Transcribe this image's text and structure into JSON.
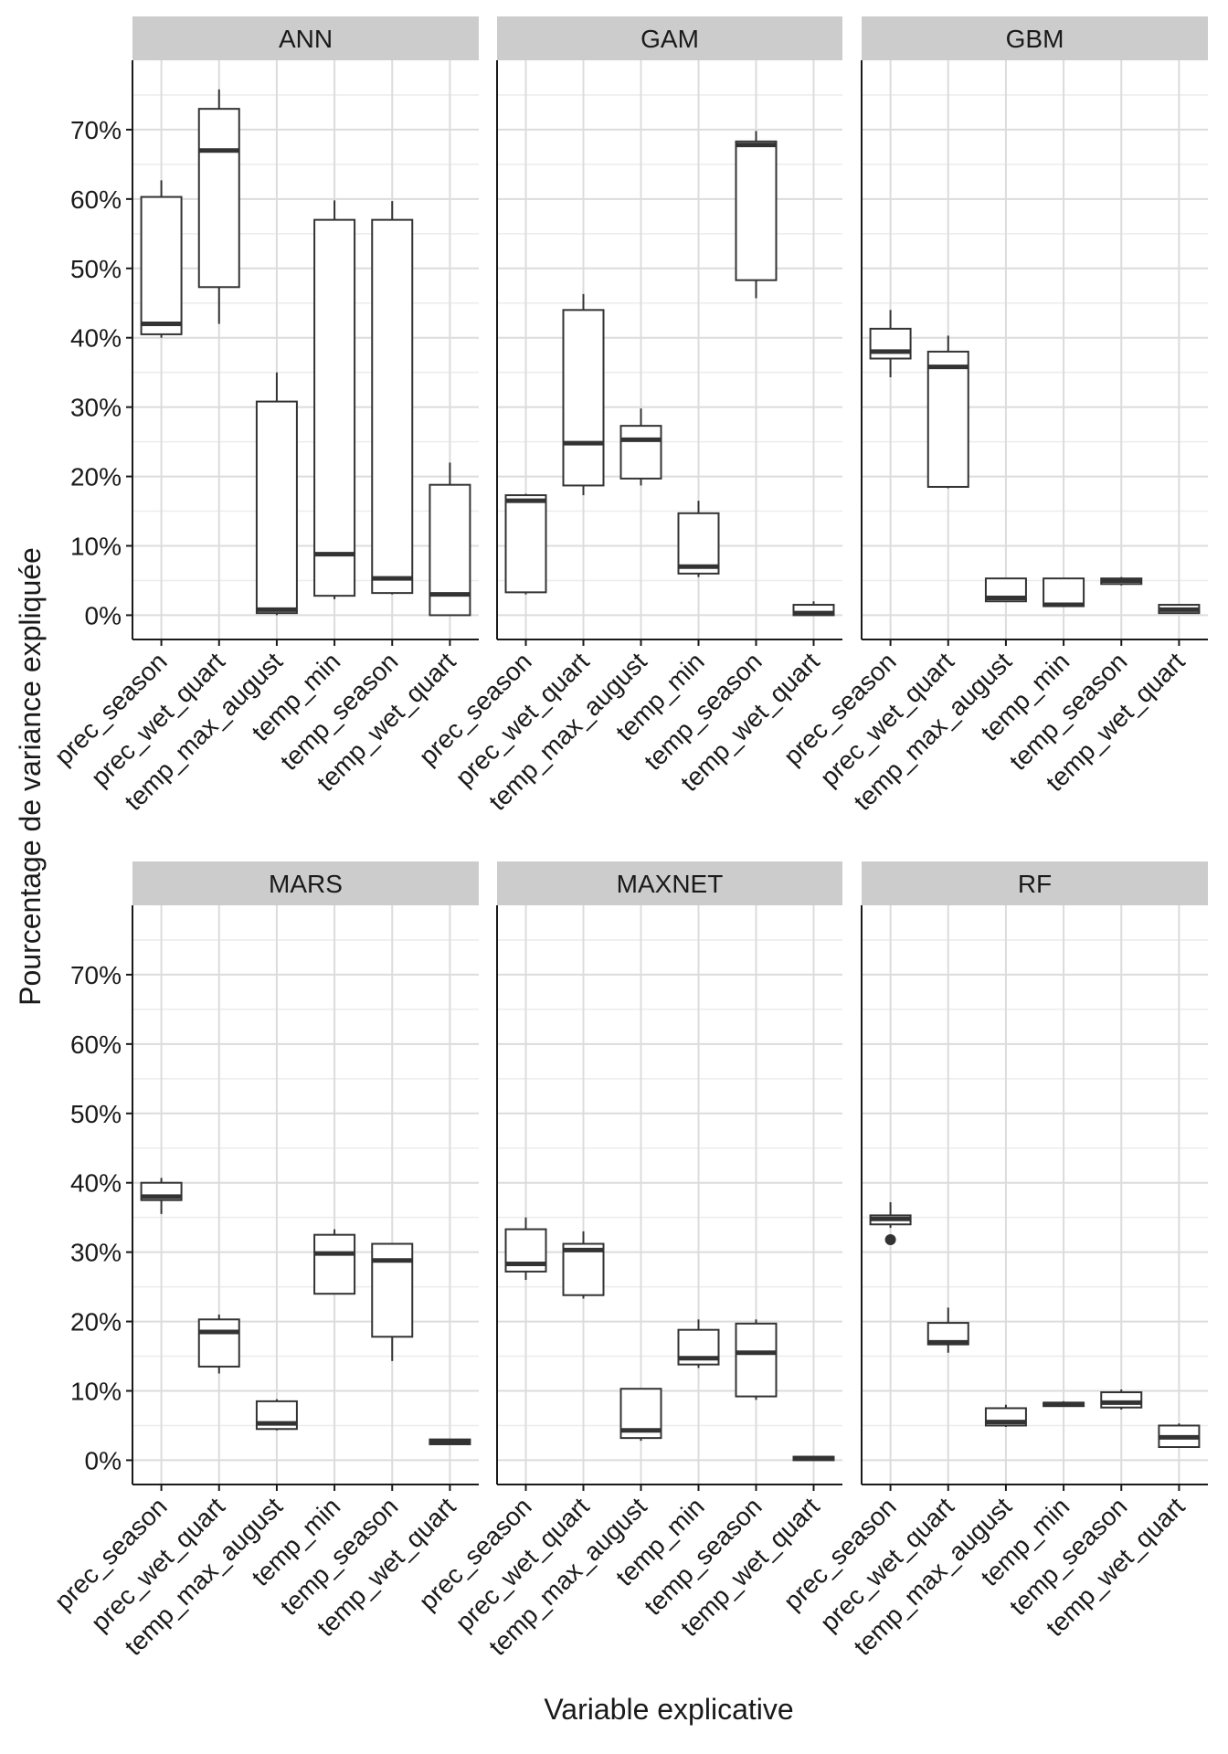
{
  "chart_data": {
    "type": "boxplot",
    "xlabel": "Variable explicative",
    "ylabel": "Pourcentage de variance expliquée",
    "ylim": [
      -3.5,
      80
    ],
    "yticks": [
      0,
      10,
      20,
      30,
      40,
      50,
      60,
      70
    ],
    "ytick_labels": [
      "0%",
      "10%",
      "20%",
      "30%",
      "40%",
      "50%",
      "60%",
      "70%"
    ],
    "categories": [
      "prec_season",
      "prec_wet_quart",
      "temp_max_august",
      "temp_min",
      "temp_season",
      "temp_wet_quart"
    ],
    "facets": [
      {
        "name": "ANN",
        "boxes": [
          {
            "min": 40,
            "q1": 40.5,
            "median": 42,
            "q3": 60.3,
            "max": 62.7
          },
          {
            "min": 42,
            "q1": 47.3,
            "median": 67,
            "q3": 73,
            "max": 75.8
          },
          {
            "min": 0,
            "q1": 0.3,
            "median": 0.8,
            "q3": 30.8,
            "max": 35
          },
          {
            "min": 2.3,
            "q1": 2.8,
            "median": 8.8,
            "q3": 57,
            "max": 59.8
          },
          {
            "min": 3,
            "q1": 3.2,
            "median": 5.3,
            "q3": 57,
            "max": 59.7
          },
          {
            "min": 0,
            "q1": 0,
            "median": 3,
            "q3": 18.8,
            "max": 22
          }
        ]
      },
      {
        "name": "GAM",
        "boxes": [
          {
            "min": 3,
            "q1": 3.3,
            "median": 16.5,
            "q3": 17.3,
            "max": 17.5
          },
          {
            "min": 17.3,
            "q1": 18.7,
            "median": 24.8,
            "q3": 44,
            "max": 46.3
          },
          {
            "min": 18.7,
            "q1": 19.7,
            "median": 25.3,
            "q3": 27.3,
            "max": 29.8
          },
          {
            "min": 5.5,
            "q1": 6,
            "median": 7,
            "q3": 14.7,
            "max": 16.5
          },
          {
            "min": 45.7,
            "q1": 48.3,
            "median": 67.8,
            "q3": 68.3,
            "max": 69.8
          },
          {
            "min": 0,
            "q1": 0,
            "median": 0.3,
            "q3": 1.5,
            "max": 2
          }
        ]
      },
      {
        "name": "GBM",
        "boxes": [
          {
            "min": 34.3,
            "q1": 37,
            "median": 38,
            "q3": 41.3,
            "max": 44
          },
          {
            "min": 18.3,
            "q1": 18.5,
            "median": 35.8,
            "q3": 38,
            "max": 40.3
          },
          {
            "min": 2,
            "q1": 2,
            "median": 2.5,
            "q3": 5.3,
            "max": 5.3
          },
          {
            "min": 1.2,
            "q1": 1.3,
            "median": 1.5,
            "q3": 5.3,
            "max": 5.3
          },
          {
            "min": 4.3,
            "q1": 4.5,
            "median": 5,
            "q3": 5.3,
            "max": 5.5
          },
          {
            "min": 0.3,
            "q1": 0.3,
            "median": 0.8,
            "q3": 1.5,
            "max": 1.5
          }
        ]
      },
      {
        "name": "MARS",
        "boxes": [
          {
            "min": 35.5,
            "q1": 37.5,
            "median": 38,
            "q3": 40,
            "max": 40.7
          },
          {
            "min": 12.5,
            "q1": 13.5,
            "median": 18.5,
            "q3": 20.3,
            "max": 21
          },
          {
            "min": 4.3,
            "q1": 4.5,
            "median": 5.3,
            "q3": 8.5,
            "max": 8.8
          },
          {
            "min": 24,
            "q1": 24,
            "median": 29.8,
            "q3": 32.5,
            "max": 33.3
          },
          {
            "min": 14.3,
            "q1": 17.8,
            "median": 28.8,
            "q3": 31.2,
            "max": 31.3
          },
          {
            "min": 2.3,
            "q1": 2.3,
            "median": 2.7,
            "q3": 3,
            "max": 3
          }
        ]
      },
      {
        "name": "MAXNET",
        "boxes": [
          {
            "min": 26,
            "q1": 27.2,
            "median": 28.3,
            "q3": 33.3,
            "max": 35
          },
          {
            "min": 23.3,
            "q1": 23.8,
            "median": 30.3,
            "q3": 31.2,
            "max": 33
          },
          {
            "min": 2.8,
            "q1": 3.2,
            "median": 4.3,
            "q3": 10.3,
            "max": 10.3
          },
          {
            "min": 13.3,
            "q1": 13.8,
            "median": 14.7,
            "q3": 18.8,
            "max": 20.3
          },
          {
            "min": 8.7,
            "q1": 9.2,
            "median": 15.5,
            "q3": 19.7,
            "max": 20.3
          },
          {
            "min": 0,
            "q1": 0,
            "median": 0.3,
            "q3": 0.5,
            "max": 0.5
          }
        ]
      },
      {
        "name": "RF",
        "boxes": [
          {
            "min": 33.5,
            "q1": 34,
            "median": 34.8,
            "q3": 35.3,
            "max": 37.2,
            "outliers": [
              31.8
            ]
          },
          {
            "min": 15.5,
            "q1": 16.7,
            "median": 17,
            "q3": 19.8,
            "max": 22
          },
          {
            "min": 4.8,
            "q1": 5,
            "median": 5.5,
            "q3": 7.5,
            "max": 8
          },
          {
            "min": 7.7,
            "q1": 7.8,
            "median": 8.1,
            "q3": 8.3,
            "max": 8.5
          },
          {
            "min": 7.3,
            "q1": 7.6,
            "median": 8.3,
            "q3": 9.8,
            "max": 10.2
          },
          {
            "min": 1.8,
            "q1": 1.9,
            "median": 3.3,
            "q3": 5,
            "max": 5.3
          }
        ]
      }
    ]
  }
}
